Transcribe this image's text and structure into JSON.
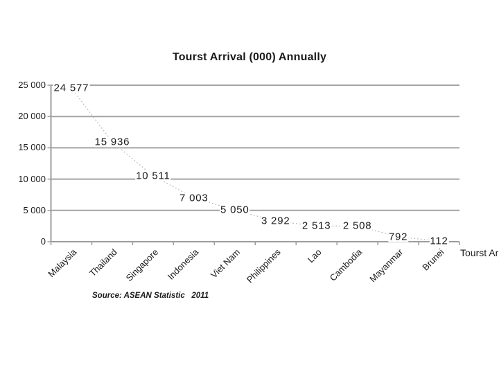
{
  "slide": {
    "title": "Tourst Arrival (000) Annually",
    "source_note": "Source: ASEAN Statistic   2011",
    "legend_label": "Tourst Arrival"
  },
  "chart_data": {
    "type": "line",
    "title": "Tourst Arrival (000) Annually",
    "categories": [
      "Malaysia",
      "Thailand",
      "Singapore",
      "Indonesia",
      "Viet Nam",
      "Philippines",
      "Lao",
      "Cambodia",
      "Mayanmar",
      "Brunei"
    ],
    "series": [
      {
        "name": "Tourst Arrival",
        "values": [
          24577,
          15936,
          10511,
          7003,
          5050,
          3292,
          2513,
          2508,
          792,
          112
        ]
      }
    ],
    "data_labels": [
      "24 577",
      "15 936",
      "10 511",
      "7 003",
      "5 050",
      "3 292",
      "2 513",
      "2 508",
      "792",
      "112"
    ],
    "xlabel": "",
    "ylabel": "",
    "ylim": [
      0,
      25000
    ],
    "y_ticks": [
      25000,
      20000,
      15000,
      10000,
      5000,
      0
    ],
    "y_tick_labels": [
      "25 000",
      "20 000",
      "15 000",
      "10 000",
      "5 000",
      "0"
    ],
    "grid": true,
    "legend_position": "right",
    "line_style": "dotted",
    "colors": {
      "line": "#b5b8a8",
      "grid": "#a3a3a3",
      "axis": "#9d9d9d",
      "text": "#1a1a1a"
    }
  }
}
